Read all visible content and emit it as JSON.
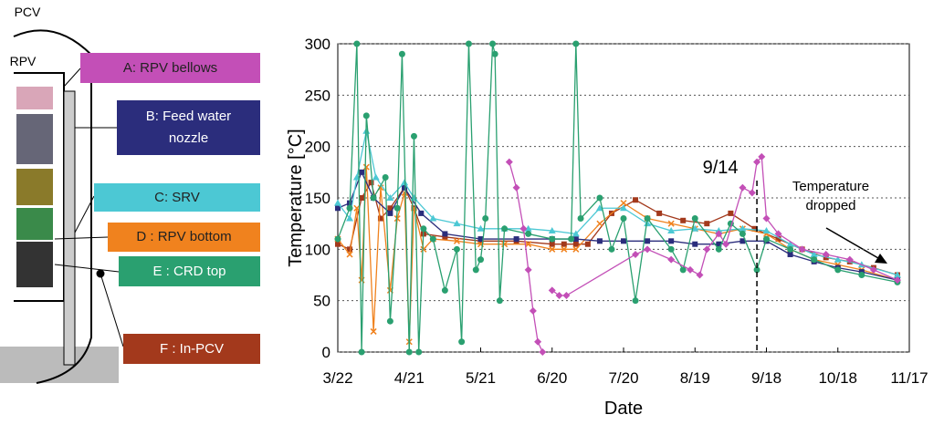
{
  "diagram": {
    "labels": [
      "PCV",
      "RPV"
    ]
  },
  "chart_data": {
    "type": "line",
    "x_label": "Date",
    "y_label": "Temperature [°C]",
    "xlim": [
      0,
      240
    ],
    "ylim": [
      0,
      300
    ],
    "xticks": [
      {
        "value": 0,
        "label": "3/22"
      },
      {
        "value": 30,
        "label": "4/21"
      },
      {
        "value": 60,
        "label": "5/21"
      },
      {
        "value": 90,
        "label": "6/20"
      },
      {
        "value": 120,
        "label": "7/20"
      },
      {
        "value": 150,
        "label": "8/19"
      },
      {
        "value": 180,
        "label": "9/18"
      },
      {
        "value": 210,
        "label": "10/18"
      },
      {
        "value": 240,
        "label": "11/17"
      }
    ],
    "yticks": [
      0,
      50,
      100,
      150,
      200,
      250,
      300
    ],
    "grid": true,
    "annotations": [
      {
        "text": "9/14",
        "x": 176
      },
      {
        "text": "Temperature dropped"
      }
    ],
    "series": [
      {
        "name": "A: RPV bellows",
        "color": "#c34fb7",
        "marker": "diamond",
        "x": [
          72,
          75,
          78,
          80,
          82,
          84,
          86,
          88,
          90,
          93,
          96,
          125,
          130,
          140,
          148,
          152,
          155,
          160,
          163,
          170,
          174,
          176,
          178,
          180,
          185,
          195,
          205,
          215,
          225,
          235
        ],
        "values": [
          185,
          160,
          120,
          80,
          40,
          10,
          0,
          null,
          60,
          55,
          55,
          95,
          100,
          90,
          80,
          75,
          100,
          115,
          105,
          160,
          155,
          185,
          190,
          130,
          115,
          100,
          95,
          90,
          80,
          70
        ]
      },
      {
        "name": "B: Feed water nozzle",
        "color": "#2b2d7c",
        "marker": "square",
        "x": [
          0,
          5,
          10,
          15,
          22,
          28,
          35,
          45,
          60,
          75,
          90,
          100,
          110,
          120,
          130,
          140,
          150,
          160,
          170,
          180,
          190,
          200,
          210,
          220,
          235
        ],
        "values": [
          140,
          145,
          175,
          150,
          135,
          160,
          135,
          115,
          110,
          110,
          110,
          110,
          108,
          108,
          108,
          108,
          105,
          105,
          108,
          108,
          95,
          88,
          82,
          78,
          70
        ]
      },
      {
        "name": "C: SRV",
        "color": "#4cc8d4",
        "marker": "triangle",
        "x": [
          0,
          5,
          8,
          12,
          16,
          22,
          28,
          32,
          40,
          50,
          60,
          70,
          80,
          90,
          100,
          110,
          120,
          130,
          140,
          150,
          160,
          170,
          180,
          190,
          200,
          210,
          220,
          235
        ],
        "values": [
          145,
          130,
          170,
          215,
          170,
          150,
          165,
          150,
          130,
          125,
          120,
          120,
          120,
          118,
          115,
          140,
          140,
          125,
          118,
          120,
          118,
          120,
          118,
          105,
          95,
          90,
          85,
          75
        ]
      },
      {
        "name": "D : RPV bottom",
        "color": "#f0821e",
        "marker": "cross",
        "x": [
          0,
          5,
          8,
          10,
          12,
          15,
          18,
          22,
          25,
          28,
          30,
          32,
          36,
          40,
          50,
          60,
          70,
          80,
          90,
          95,
          100,
          110,
          120,
          130,
          140,
          150,
          160,
          170,
          180,
          190,
          200,
          210,
          220,
          235
        ],
        "values": [
          110,
          95,
          140,
          70,
          180,
          20,
          160,
          60,
          130,
          155,
          10,
          140,
          100,
          110,
          108,
          105,
          105,
          105,
          100,
          100,
          100,
          125,
          145,
          130,
          125,
          120,
          115,
          120,
          115,
          100,
          90,
          85,
          80,
          70
        ]
      },
      {
        "name": "E : CRD top",
        "color": "#2aa070",
        "marker": "circle",
        "x": [
          0,
          5,
          8,
          10,
          12,
          15,
          20,
          22,
          25,
          27,
          30,
          32,
          34,
          36,
          40,
          45,
          50,
          52,
          55,
          58,
          60,
          62,
          65,
          66,
          68,
          70,
          80,
          90,
          98,
          100,
          102,
          110,
          115,
          120,
          125,
          130,
          140,
          145,
          150,
          160,
          165,
          170,
          176,
          180,
          190,
          200,
          210,
          220,
          235
        ],
        "values": [
          110,
          140,
          300,
          0,
          230,
          150,
          170,
          30,
          140,
          290,
          0,
          210,
          0,
          120,
          110,
          60,
          100,
          10,
          300,
          80,
          90,
          130,
          300,
          290,
          50,
          120,
          115,
          110,
          110,
          300,
          130,
          150,
          100,
          130,
          50,
          130,
          100,
          80,
          130,
          100,
          125,
          115,
          80,
          110,
          100,
          90,
          80,
          75,
          68
        ]
      },
      {
        "name": "F : In-PCV",
        "color": "#a3391c",
        "marker": "square",
        "x": [
          0,
          5,
          10,
          14,
          18,
          22,
          28,
          32,
          36,
          45,
          60,
          75,
          90,
          95,
          100,
          105,
          115,
          125,
          135,
          145,
          155,
          165,
          175,
          185,
          195,
          205,
          215,
          225,
          235
        ],
        "values": [
          105,
          100,
          150,
          165,
          130,
          140,
          160,
          140,
          115,
          112,
          108,
          108,
          105,
          105,
          105,
          105,
          135,
          148,
          135,
          128,
          125,
          135,
          120,
          110,
          100,
          92,
          88,
          82,
          75
        ]
      }
    ]
  }
}
